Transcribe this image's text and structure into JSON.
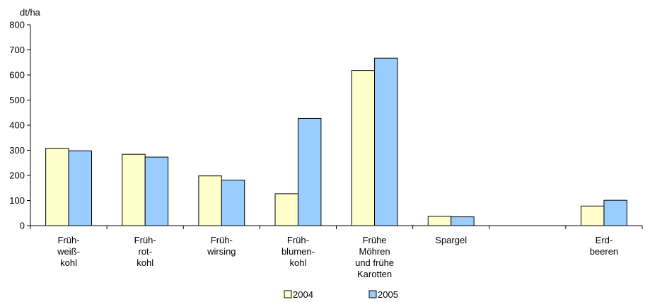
{
  "chart_data": {
    "type": "bar",
    "unit_label": "dt/ha",
    "categories": [
      [
        "Früh-",
        "weiß-",
        "kohl"
      ],
      [
        "Früh-",
        "rot-",
        "kohl"
      ],
      [
        "Früh-",
        "wirsing"
      ],
      [
        "Früh-",
        "blumen-",
        "kohl"
      ],
      [
        "Frühe",
        "Möhren",
        "und frühe",
        "Karotten"
      ],
      [
        "Spargel"
      ],
      [],
      [
        "Erd-",
        "beeren"
      ]
    ],
    "series": [
      {
        "name": "2004",
        "color": "#ffffcc",
        "values": [
          308,
          284,
          198,
          127,
          618,
          37,
          null,
          78
        ]
      },
      {
        "name": "2005",
        "color": "#99ccff",
        "values": [
          298,
          273,
          181,
          427,
          667,
          35,
          null,
          101
        ]
      }
    ],
    "ylim": [
      0,
      800
    ],
    "yticks": [
      0,
      100,
      200,
      300,
      400,
      500,
      600,
      700,
      800
    ],
    "grid": false,
    "legend_position": "bottom-center"
  }
}
